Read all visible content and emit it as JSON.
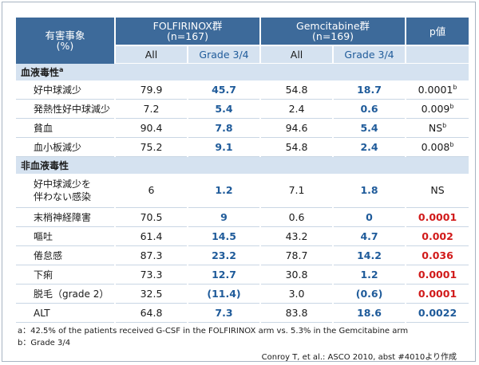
{
  "header": {
    "col_label_line1": "有害事象",
    "col_label_line2": "(%)",
    "folfirinox_line1": "FOLFIRINOX群",
    "folfirinox_line2": "(n=167)",
    "gem_line1": "Gemcitabine群",
    "gem_line2": "(n=169)",
    "p_label": "p値",
    "sub_all": "All",
    "sub_grade": "Grade 3/4"
  },
  "sections": {
    "hematologic": {
      "label": "血液毒性",
      "sup": "a"
    },
    "nonhematologic": {
      "label": "非血液毒性"
    }
  },
  "rows": {
    "hematologic": [
      {
        "label": "好中球減少",
        "f_all": "79.9",
        "f_g34": "45.7",
        "g_all": "54.8",
        "g_g34": "18.7",
        "p": "0.0001",
        "p_sup": "b",
        "p_style": "plain"
      },
      {
        "label": "発熱性好中球減少",
        "f_all": "7.2",
        "f_g34": "5.4",
        "g_all": "2.4",
        "g_g34": "0.6",
        "p": "0.009",
        "p_sup": "b",
        "p_style": "plain"
      },
      {
        "label": "貧血",
        "f_all": "90.4",
        "f_g34": "7.8",
        "g_all": "94.6",
        "g_g34": "5.4",
        "p": "NS",
        "p_sup": "b",
        "p_style": "plain"
      },
      {
        "label": "血小板減少",
        "f_all": "75.2",
        "f_g34": "9.1",
        "g_all": "54.8",
        "g_g34": "2.4",
        "p": "0.008",
        "p_sup": "b",
        "p_style": "plain"
      }
    ],
    "nonhematologic": [
      {
        "label_line1": "好中球減少を",
        "label_line2": "伴わない感染",
        "f_all": "6",
        "f_g34": "1.2",
        "g_all": "7.1",
        "g_g34": "1.8",
        "p": "NS",
        "p_style": "plain"
      },
      {
        "label": "末梢神経障害",
        "f_all": "70.5",
        "f_g34": "9",
        "g_all": "0.6",
        "g_g34": "0",
        "p": "0.0001",
        "p_style": "red"
      },
      {
        "label": "嘔吐",
        "f_all": "61.4",
        "f_g34": "14.5",
        "g_all": "43.2",
        "g_g34": "4.7",
        "p": "0.002",
        "p_style": "red"
      },
      {
        "label": "倦怠感",
        "f_all": "87.3",
        "f_g34": "23.2",
        "g_all": "78.7",
        "g_g34": "14.2",
        "p": "0.036",
        "p_style": "red"
      },
      {
        "label": "下痢",
        "f_all": "73.3",
        "f_g34": "12.7",
        "g_all": "30.8",
        "g_g34": "1.2",
        "p": "0.0001",
        "p_style": "red"
      },
      {
        "label": "脱毛（grade 2）",
        "f_all": "32.5",
        "f_g34": "(11.4)",
        "g_all": "3.0",
        "g_g34": "(0.6)",
        "p": "0.0001",
        "p_style": "red"
      },
      {
        "label": "ALT",
        "f_all": "64.8",
        "f_g34": "7.3",
        "g_all": "83.8",
        "g_g34": "18.6",
        "p": "0.0022",
        "p_style": "blue"
      }
    ]
  },
  "footnotes": {
    "a": "a：42.5% of the patients received G-CSF in the FOLFIRINOX arm vs. 5.3% in the Gemcitabine arm",
    "b": "b：Grade 3/4"
  },
  "source": "Conroy T, et al.: ASCO 2010, abst #4010より作成",
  "colors": {
    "header_bg": "#3d6a9a",
    "subheader_bg": "#d5e2f0",
    "grade_text": "#1f5b9a",
    "significant_p": "#d11a1a"
  }
}
